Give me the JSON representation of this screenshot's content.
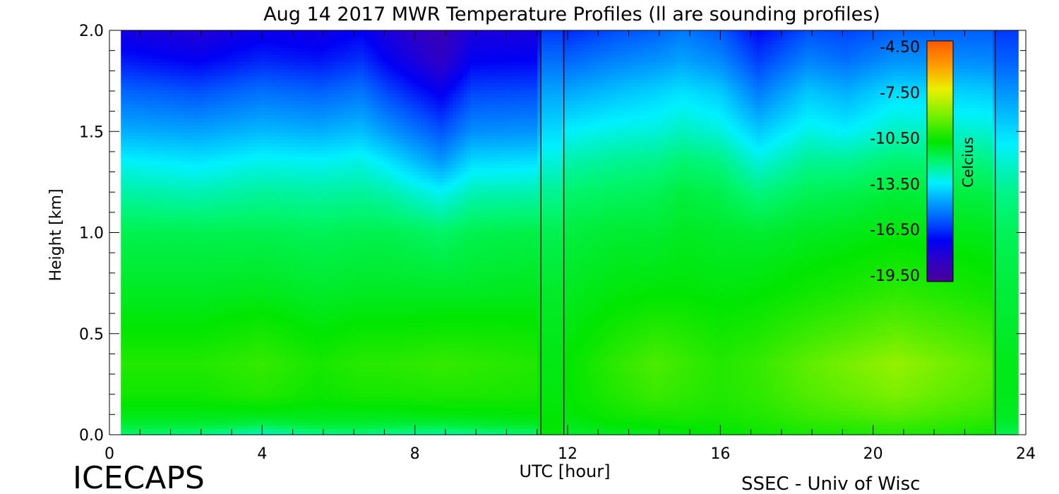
{
  "chart_data": {
    "type": "heatmap",
    "title": "Aug 14 2017 MWR Temperature Profiles (ll are sounding profiles)",
    "xlabel": "UTC [hour]",
    "ylabel": "Height [km]",
    "xlim": [
      0,
      24
    ],
    "ylim": [
      0.0,
      2.0
    ],
    "x_ticks": [
      "0",
      "4",
      "8",
      "12",
      "16",
      "20",
      "24"
    ],
    "y_ticks": [
      "0.0",
      "0.5",
      "1.0",
      "1.5",
      "2.0"
    ],
    "data_start_hour": 0.3,
    "data_end_hour": 23.8,
    "sounding_lines_hours": [
      11.3,
      11.9,
      23.2
    ],
    "colorbar": {
      "label": "Celcius",
      "ticks": [
        "-4.50",
        "-7.50",
        "-10.50",
        "-13.50",
        "-16.50",
        "-19.50"
      ],
      "range": [
        -21.0,
        -3.0
      ]
    },
    "profile_heights_km": [
      0.0,
      0.05,
      0.1,
      0.2,
      0.35,
      0.5,
      0.7,
      1.0,
      1.2,
      1.35,
      1.5,
      1.7,
      1.85,
      2.0
    ],
    "profiles": [
      {
        "hour": 0.3,
        "temps_c": [
          -12.0,
          -11.2,
          -10.8,
          -10.3,
          -10.0,
          -10.5,
          -11.0,
          -11.6,
          -12.6,
          -13.5,
          -14.8,
          -16.2,
          -17.5,
          -18.6
        ]
      },
      {
        "hour": 2.3,
        "temps_c": [
          -12.2,
          -11.2,
          -10.8,
          -10.3,
          -10.0,
          -10.5,
          -11.0,
          -11.6,
          -12.8,
          -13.8,
          -15.0,
          -16.6,
          -18.0,
          -19.0
        ]
      },
      {
        "hour": 4.0,
        "temps_c": [
          -13.0,
          -11.5,
          -10.8,
          -10.0,
          -9.7,
          -10.2,
          -10.9,
          -11.6,
          -12.5,
          -13.4,
          -14.6,
          -16.0,
          -17.3,
          -18.3
        ]
      },
      {
        "hour": 5.5,
        "temps_c": [
          -12.3,
          -11.2,
          -10.8,
          -10.4,
          -10.2,
          -10.6,
          -11.1,
          -11.7,
          -12.6,
          -13.5,
          -14.8,
          -16.3,
          -17.6,
          -18.5
        ]
      },
      {
        "hour": 6.6,
        "temps_c": [
          -12.2,
          -11.2,
          -10.8,
          -10.2,
          -9.9,
          -10.4,
          -11.0,
          -11.6,
          -12.5,
          -13.3,
          -14.5,
          -15.9,
          -17.1,
          -18.0
        ]
      },
      {
        "hour": 7.3,
        "temps_c": [
          -12.4,
          -11.3,
          -10.8,
          -10.2,
          -9.9,
          -10.4,
          -11.0,
          -11.6,
          -12.7,
          -13.8,
          -15.2,
          -16.8,
          -18.0,
          -18.8
        ]
      },
      {
        "hour": 8.7,
        "temps_c": [
          -12.6,
          -11.3,
          -10.7,
          -10.1,
          -9.7,
          -10.3,
          -11.0,
          -11.9,
          -13.5,
          -15.2,
          -16.5,
          -18.2,
          -19.5,
          -20.0
        ]
      },
      {
        "hour": 9.5,
        "temps_c": [
          -12.4,
          -11.2,
          -10.7,
          -10.1,
          -9.8,
          -10.3,
          -11.0,
          -11.6,
          -12.8,
          -14.0,
          -15.4,
          -16.8,
          -18.0,
          -18.8
        ]
      },
      {
        "hour": 11.2,
        "temps_c": [
          -12.0,
          -11.0,
          -10.6,
          -10.2,
          -10.0,
          -10.4,
          -10.9,
          -11.5,
          -12.7,
          -13.9,
          -15.3,
          -16.7,
          -17.9,
          -18.7
        ]
      },
      {
        "hour": 11.31,
        "temps_c": [
          -10.6,
          -10.6,
          -10.6,
          -10.7,
          -10.8,
          -10.9,
          -11.1,
          -11.6,
          -12.4,
          -13.2,
          -14.0,
          -15.0,
          -16.0,
          -17.0
        ]
      },
      {
        "hour": 11.89,
        "temps_c": [
          -10.6,
          -10.6,
          -10.6,
          -10.7,
          -10.8,
          -10.9,
          -11.1,
          -11.6,
          -12.4,
          -13.2,
          -14.0,
          -15.0,
          -16.0,
          -17.0
        ]
      },
      {
        "hour": 11.9,
        "temps_c": [
          -11.2,
          -10.9,
          -10.7,
          -10.6,
          -10.6,
          -10.8,
          -11.0,
          -11.4,
          -12.0,
          -12.7,
          -13.6,
          -15.0,
          -16.2,
          -17.3
        ]
      },
      {
        "hour": 13.3,
        "temps_c": [
          -11.0,
          -10.6,
          -10.3,
          -10.0,
          -9.8,
          -10.2,
          -10.7,
          -11.2,
          -11.8,
          -12.4,
          -13.3,
          -14.5,
          -15.6,
          -16.6
        ]
      },
      {
        "hour": 14.3,
        "temps_c": [
          -11.0,
          -10.5,
          -10.1,
          -9.6,
          -9.3,
          -9.9,
          -10.6,
          -11.2,
          -11.7,
          -12.3,
          -13.2,
          -14.2,
          -15.3,
          -16.3
        ]
      },
      {
        "hour": 15.0,
        "temps_c": [
          -10.8,
          -10.4,
          -10.1,
          -9.8,
          -9.6,
          -10.0,
          -10.6,
          -11.0,
          -11.4,
          -12.0,
          -12.9,
          -13.9,
          -15.0,
          -15.8
        ]
      },
      {
        "hour": 16.0,
        "temps_c": [
          -10.6,
          -10.4,
          -10.2,
          -10.0,
          -10.0,
          -10.3,
          -10.7,
          -11.1,
          -11.6,
          -12.2,
          -13.2,
          -14.3,
          -15.5,
          -16.4
        ]
      },
      {
        "hour": 17.0,
        "temps_c": [
          -10.4,
          -10.2,
          -10.0,
          -9.8,
          -9.7,
          -10.1,
          -10.6,
          -11.2,
          -12.2,
          -13.2,
          -14.3,
          -15.8,
          -16.9,
          -17.8
        ]
      },
      {
        "hour": 18.3,
        "temps_c": [
          -10.2,
          -9.9,
          -9.6,
          -9.2,
          -9.0,
          -9.6,
          -10.3,
          -11.0,
          -11.7,
          -12.4,
          -13.3,
          -14.4,
          -15.6,
          -16.6
        ]
      },
      {
        "hour": 19.3,
        "temps_c": [
          -10.2,
          -9.8,
          -9.4,
          -8.9,
          -8.6,
          -9.3,
          -10.1,
          -10.9,
          -11.6,
          -12.4,
          -13.6,
          -14.8,
          -16.0,
          -16.8
        ]
      },
      {
        "hour": 20.6,
        "temps_c": [
          -10.0,
          -9.6,
          -9.1,
          -8.5,
          -8.1,
          -8.9,
          -9.8,
          -10.7,
          -11.3,
          -12.0,
          -12.9,
          -14.0,
          -15.3,
          -16.3
        ]
      },
      {
        "hour": 23.1,
        "temps_c": [
          -10.4,
          -10.0,
          -9.7,
          -9.3,
          -9.1,
          -9.6,
          -10.3,
          -10.9,
          -11.5,
          -12.2,
          -13.1,
          -14.3,
          -15.5,
          -16.3
        ]
      },
      {
        "hour": 23.21,
        "temps_c": [
          -11.6,
          -11.2,
          -11.0,
          -10.9,
          -10.9,
          -11.1,
          -11.3,
          -11.7,
          -12.3,
          -13.1,
          -14.0,
          -15.3,
          -16.3,
          -17.0
        ]
      },
      {
        "hour": 23.8,
        "temps_c": [
          -11.6,
          -11.2,
          -11.0,
          -10.9,
          -10.9,
          -11.1,
          -11.3,
          -11.7,
          -12.3,
          -13.1,
          -14.0,
          -15.3,
          -16.3,
          -17.0
        ]
      }
    ]
  },
  "footer": {
    "left_text": "ICECAPS",
    "right_text": "SSEC - Univ of Wisc"
  }
}
